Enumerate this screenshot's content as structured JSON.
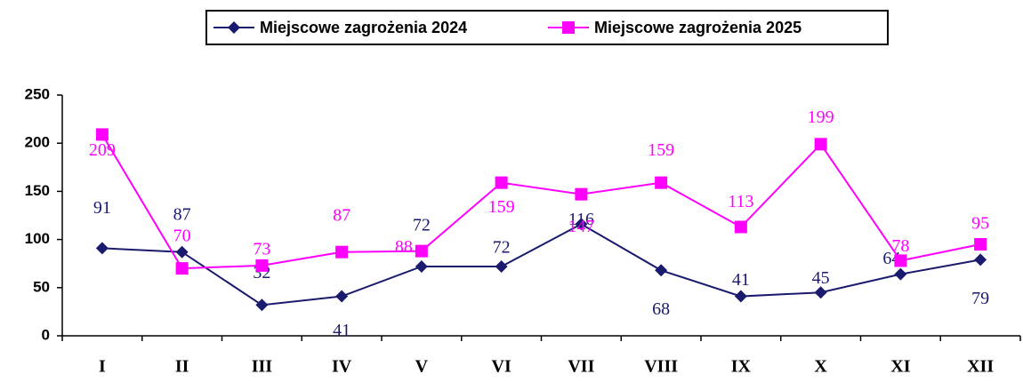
{
  "chart_data": {
    "type": "line",
    "categories": [
      "I",
      "II",
      "III",
      "IV",
      "V",
      "VI",
      "VII",
      "VIII",
      "IX",
      "X",
      "XI",
      "XII"
    ],
    "series": [
      {
        "name": "Miejscowe zagrożenia 2024",
        "color": "#1a1a6e",
        "marker": "diamond",
        "values": [
          91,
          87,
          32,
          41,
          72,
          72,
          116,
          68,
          41,
          45,
          64,
          79
        ]
      },
      {
        "name": "Miejscowe zagrożenia 2025",
        "color": "#ff00ff",
        "marker": "square",
        "values": [
          209,
          70,
          73,
          87,
          88,
          159,
          147,
          159,
          113,
          199,
          78,
          95
        ]
      }
    ],
    "ylim": [
      0,
      250
    ],
    "yticks": [
      0,
      50,
      100,
      150,
      200,
      250
    ],
    "grid": false,
    "legend": "top"
  }
}
